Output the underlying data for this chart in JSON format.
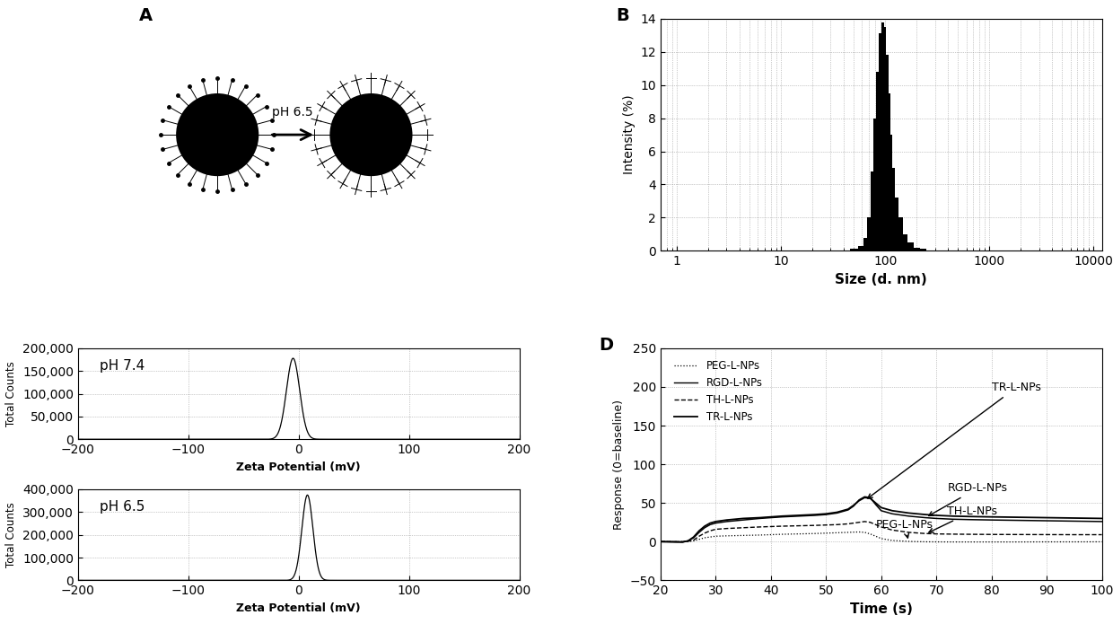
{
  "panel_label_fontsize": 14,
  "panel_label_weight": "bold",
  "B_bar_centers": [
    50,
    60,
    65,
    70,
    75,
    80,
    85,
    90,
    95,
    100,
    105,
    110,
    115,
    120,
    130,
    140,
    155,
    175,
    200,
    230
  ],
  "B_bar_heights": [
    0.15,
    0.3,
    0.8,
    2.0,
    4.8,
    8.0,
    10.8,
    13.1,
    13.8,
    13.5,
    11.8,
    9.5,
    7.0,
    5.0,
    3.2,
    2.0,
    1.0,
    0.5,
    0.2,
    0.1
  ],
  "B_xlabel": "Size (d. nm)",
  "B_ylabel": "Intensity (%)",
  "B_ylim": [
    0,
    14
  ],
  "B_yticks": [
    0,
    2,
    4,
    6,
    8,
    10,
    12,
    14
  ],
  "B_xlim": [
    0.7,
    12000
  ],
  "C_pH74_peak": -5,
  "C_pH74_sigma": 6,
  "C_pH74_max": 178000,
  "C_pH74_ylabel": "Total Counts",
  "C_pH74_ylim": [
    0,
    200000
  ],
  "C_pH74_yticks": [
    0,
    50000,
    100000,
    150000,
    200000
  ],
  "C_pH74_label": "pH 7.4",
  "C_pH65_peak": 8,
  "C_pH65_sigma": 5,
  "C_pH65_max": 375000,
  "C_pH65_ylabel": "Total Counts",
  "C_pH65_ylim": [
    0,
    400000
  ],
  "C_pH65_yticks": [
    0,
    100000,
    200000,
    300000,
    400000
  ],
  "C_pH65_label": "pH 6.5",
  "C_xlabel": "Zeta Potential (mV)",
  "C_xlim": [
    -200,
    200
  ],
  "C_xticks": [
    -200,
    -100,
    0,
    100,
    200
  ],
  "D_time": [
    20,
    24,
    25,
    26,
    27,
    28,
    29,
    30,
    32,
    35,
    38,
    40,
    42,
    45,
    48,
    50,
    52,
    54,
    55,
    56,
    57,
    58,
    59,
    60,
    62,
    65,
    68,
    70,
    73,
    76,
    80,
    85,
    90,
    95,
    100
  ],
  "D_TR": [
    0,
    -0.5,
    1,
    6,
    14,
    20,
    24,
    26,
    28,
    30,
    31,
    32,
    33,
    34,
    35,
    36,
    38,
    42,
    47,
    53,
    57,
    56,
    50,
    44,
    40,
    37,
    35,
    34,
    33,
    32.5,
    32,
    31.5,
    31,
    30.5,
    30
  ],
  "D_RGD": [
    0,
    -0.5,
    1,
    5,
    12,
    18,
    22,
    24,
    26,
    28,
    30,
    31,
    32,
    33,
    34,
    35,
    37,
    41,
    46,
    54,
    58,
    57,
    48,
    40,
    36,
    33,
    31,
    30,
    29,
    28.5,
    28,
    27.5,
    27,
    26.5,
    26
  ],
  "D_TH": [
    0,
    -0.2,
    0.5,
    2,
    7,
    11,
    14,
    16,
    17,
    18,
    19,
    19.5,
    20,
    20.5,
    21,
    21.5,
    22,
    23,
    24,
    25,
    26,
    25,
    22,
    19,
    15,
    12,
    10.5,
    10,
    9.7,
    9.5,
    9.3,
    9.2,
    9.1,
    9.0,
    9.0
  ],
  "D_PEG": [
    0,
    0,
    0.2,
    1,
    3,
    5,
    6,
    7,
    7.5,
    8,
    8.5,
    9,
    9.5,
    10,
    10.5,
    11,
    11.5,
    12,
    12.3,
    12.5,
    12,
    10,
    7,
    4,
    1.5,
    0.3,
    -0.2,
    -0.3,
    -0.4,
    -0.4,
    -0.4,
    -0.4,
    -0.3,
    -0.3,
    -0.2
  ],
  "D_xlabel": "Time (s)",
  "D_ylabel": "Response (0=baseline)",
  "D_ylim": [
    -50,
    250
  ],
  "D_yticks": [
    -50,
    0,
    50,
    100,
    150,
    200,
    250
  ],
  "D_xlim": [
    20,
    100
  ],
  "D_xticks": [
    20,
    30,
    40,
    50,
    60,
    70,
    80,
    90,
    100
  ],
  "background_color": "#ffffff",
  "grid_color": "#999999",
  "grid_style": ":"
}
